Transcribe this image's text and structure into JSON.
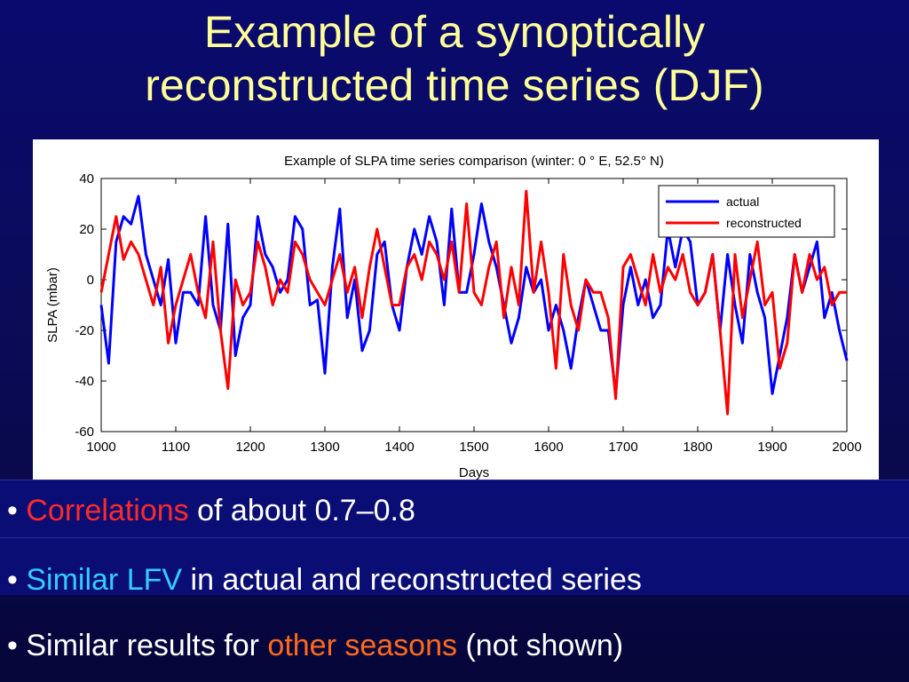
{
  "slide": {
    "title_line1": "Example of a synoptically",
    "title_line2": "reconstructed time series (DJF)"
  },
  "bullets": [
    {
      "marker": "•",
      "highlight": "Correlations",
      "text": " of about 0.7–0.8",
      "highlight_color": "#ff2a2a"
    },
    {
      "marker": "•",
      "highlight": "Similar LFV",
      "text": " in actual and reconstructed series",
      "highlight_color": "#33ccff"
    },
    {
      "marker": "•",
      "prefix": "Similar results for ",
      "highlight": "other seasons",
      "text": " (not shown)",
      "highlight_color": "#ff6a1a"
    }
  ],
  "colors": {
    "background": "#0a0a6e",
    "title": "#ffff99",
    "actual": "#0000ff",
    "reconstructed": "#ff0000"
  },
  "chart_data": {
    "type": "line",
    "title": "Example of SLPA time series comparison (winter: 0  ° E, 52.5° N)",
    "xlabel": "Days",
    "ylabel": "SLPA (mbar)",
    "xlim": [
      1000,
      2000
    ],
    "ylim": [
      -60,
      40
    ],
    "xticks": [
      1000,
      1100,
      1200,
      1300,
      1400,
      1500,
      1600,
      1700,
      1800,
      1900,
      2000
    ],
    "yticks": [
      40,
      20,
      0,
      -20,
      -40,
      -60
    ],
    "grid": false,
    "legend_position": "top-right",
    "series": [
      {
        "name": "actual",
        "color": "#0000ff",
        "x": [
          1000,
          1010,
          1020,
          1030,
          1040,
          1050,
          1060,
          1070,
          1080,
          1090,
          1100,
          1110,
          1120,
          1130,
          1140,
          1150,
          1160,
          1170,
          1180,
          1190,
          1200,
          1210,
          1220,
          1230,
          1240,
          1250,
          1260,
          1270,
          1280,
          1290,
          1300,
          1310,
          1320,
          1330,
          1340,
          1350,
          1360,
          1370,
          1380,
          1390,
          1400,
          1410,
          1420,
          1430,
          1440,
          1450,
          1460,
          1470,
          1480,
          1490,
          1500,
          1510,
          1520,
          1530,
          1540,
          1550,
          1560,
          1570,
          1580,
          1590,
          1600,
          1610,
          1620,
          1630,
          1640,
          1650,
          1660,
          1670,
          1680,
          1690,
          1700,
          1710,
          1720,
          1730,
          1740,
          1750,
          1760,
          1770,
          1780,
          1790,
          1800,
          1810,
          1820,
          1830,
          1840,
          1850,
          1860,
          1870,
          1880,
          1890,
          1900,
          1910,
          1920,
          1930,
          1940,
          1950,
          1960,
          1970,
          1980,
          1990,
          2000
        ],
        "y": [
          -10,
          -33,
          15,
          25,
          22,
          33,
          10,
          0,
          -10,
          8,
          -25,
          -5,
          -5,
          -10,
          25,
          -10,
          -20,
          22,
          -30,
          -15,
          -10,
          25,
          10,
          5,
          -5,
          0,
          25,
          20,
          -10,
          -8,
          -37,
          5,
          28,
          -15,
          0,
          -28,
          -20,
          10,
          15,
          -10,
          -20,
          5,
          20,
          10,
          25,
          15,
          -10,
          28,
          -5,
          -5,
          10,
          30,
          15,
          5,
          -10,
          -25,
          -15,
          5,
          -5,
          0,
          -20,
          -10,
          -20,
          -35,
          -15,
          0,
          -10,
          -20,
          -20,
          -45,
          -10,
          5,
          -10,
          0,
          -15,
          -10,
          20,
          5,
          20,
          15,
          -10,
          -5,
          10,
          -20,
          10,
          -10,
          -25,
          10,
          -5,
          -15,
          -45,
          -30,
          -15,
          10,
          -5,
          5,
          15,
          -15,
          -5,
          -20,
          -32
        ]
      },
      {
        "name": "reconstructed",
        "color": "#ff0000",
        "x": [
          1000,
          1010,
          1020,
          1030,
          1040,
          1050,
          1060,
          1070,
          1080,
          1090,
          1100,
          1110,
          1120,
          1130,
          1140,
          1150,
          1160,
          1170,
          1180,
          1190,
          1200,
          1210,
          1220,
          1230,
          1240,
          1250,
          1260,
          1270,
          1280,
          1290,
          1300,
          1310,
          1320,
          1330,
          1340,
          1350,
          1360,
          1370,
          1380,
          1390,
          1400,
          1410,
          1420,
          1430,
          1440,
          1450,
          1460,
          1470,
          1480,
          1490,
          1500,
          1510,
          1520,
          1530,
          1540,
          1550,
          1560,
          1570,
          1580,
          1590,
          1600,
          1610,
          1620,
          1630,
          1640,
          1650,
          1660,
          1670,
          1680,
          1690,
          1700,
          1710,
          1720,
          1730,
          1740,
          1750,
          1760,
          1770,
          1780,
          1790,
          1800,
          1810,
          1820,
          1830,
          1840,
          1850,
          1860,
          1870,
          1880,
          1890,
          1900,
          1910,
          1920,
          1930,
          1940,
          1950,
          1960,
          1970,
          1980,
          1990,
          2000
        ],
        "y": [
          -5,
          10,
          25,
          8,
          15,
          10,
          0,
          -10,
          5,
          -25,
          -10,
          0,
          10,
          -5,
          -15,
          15,
          -20,
          -43,
          0,
          -10,
          -5,
          15,
          5,
          -10,
          0,
          -5,
          15,
          10,
          0,
          -5,
          -10,
          0,
          10,
          -5,
          5,
          -15,
          5,
          20,
          5,
          -10,
          -10,
          5,
          10,
          0,
          15,
          10,
          0,
          15,
          -5,
          30,
          -5,
          -10,
          5,
          15,
          -15,
          5,
          -10,
          35,
          -5,
          15,
          -5,
          -35,
          10,
          -10,
          -20,
          0,
          -5,
          -5,
          -15,
          -47,
          5,
          10,
          0,
          -10,
          10,
          -5,
          5,
          0,
          10,
          -5,
          -10,
          -5,
          10,
          -20,
          -53,
          10,
          -15,
          0,
          15,
          -10,
          -5,
          -35,
          -25,
          10,
          -5,
          10,
          0,
          5,
          -10,
          -5,
          -5
        ]
      }
    ]
  }
}
